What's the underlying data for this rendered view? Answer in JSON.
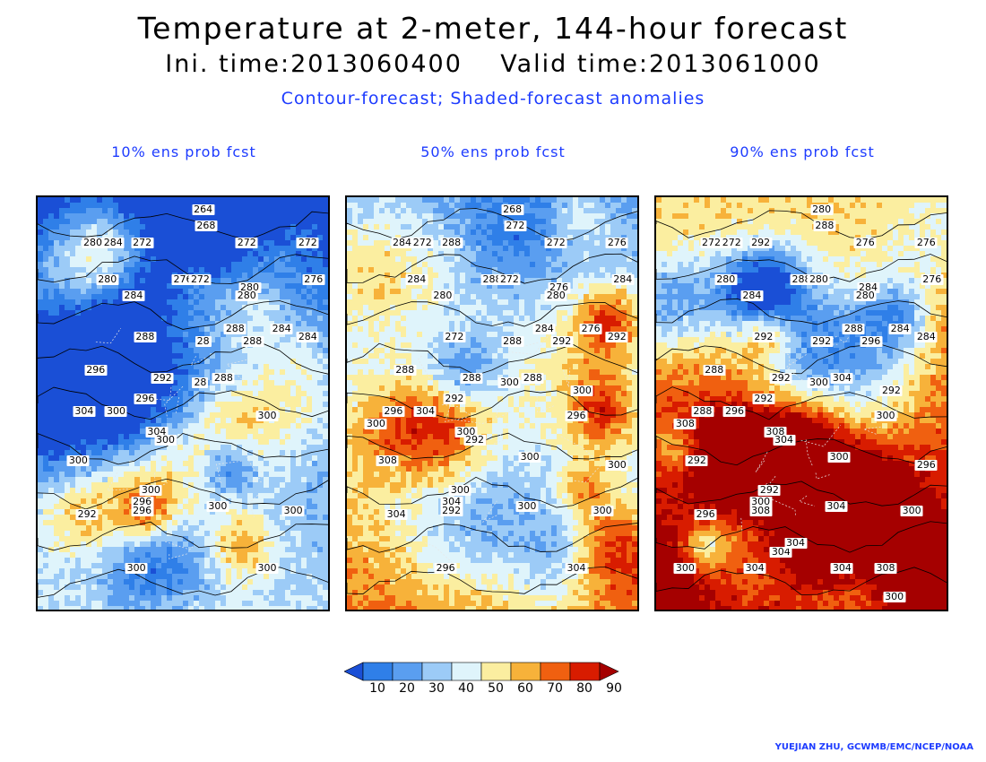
{
  "header": {
    "title": "Temperature at 2-meter, 144-hour forecast",
    "time_line": "Ini. time:2013060400    Valid time:2013061000",
    "subtitle": "Contour-forecast; Shaded-forecast anomalies"
  },
  "panels": [
    {
      "title": "10% ens prob fcst",
      "warmth": 0.18,
      "contour_labels": [
        "264",
        "268",
        "272",
        "272",
        "280",
        "284",
        "272",
        "272",
        "280",
        "276",
        "280",
        "284",
        "272",
        "276",
        "280",
        "288",
        "288",
        "284",
        "28",
        "288",
        "296",
        "292",
        "284",
        "28",
        "288",
        "296",
        "304",
        "300",
        "304",
        "300",
        "300",
        "300",
        "292",
        "296",
        "300",
        "296",
        "300",
        "300",
        "300",
        "300"
      ]
    },
    {
      "title": "50% ens prob fcst",
      "warmth": 0.5,
      "contour_labels": [
        "268",
        "272",
        "284",
        "288",
        "284",
        "272",
        "272",
        "276",
        "284",
        "288",
        "276",
        "280",
        "272",
        "284",
        "280",
        "284",
        "272",
        "276",
        "288",
        "292",
        "288",
        "288",
        "292",
        "300",
        "288",
        "292",
        "296",
        "304",
        "300",
        "292",
        "296",
        "308",
        "304",
        "304",
        "300",
        "292",
        "300",
        "300",
        "296",
        "304",
        "300",
        "300",
        "300",
        "300"
      ]
    },
    {
      "title": "90% ens prob fcst",
      "warmth": 0.8,
      "contour_labels": [
        "280",
        "288",
        "284",
        "292",
        "272",
        "272",
        "276",
        "276",
        "280",
        "288",
        "284",
        "284",
        "280",
        "276",
        "280",
        "288",
        "292",
        "284",
        "292",
        "296",
        "288",
        "292",
        "284",
        "300",
        "304",
        "292",
        "288",
        "296",
        "308",
        "304",
        "300",
        "292",
        "296",
        "300",
        "292",
        "308",
        "304",
        "300",
        "304",
        "308",
        "308",
        "292",
        "300",
        "296",
        "304",
        "304",
        "304",
        "300",
        "300"
      ]
    }
  ],
  "colorbar": {
    "labels": [
      "10",
      "20",
      "30",
      "40",
      "50",
      "60",
      "70",
      "80",
      "90"
    ],
    "colors": [
      "#1a4fd6",
      "#2f7fe8",
      "#5a9ef0",
      "#9ccbf7",
      "#dff4fb",
      "#fbeea0",
      "#f7b23a",
      "#f06010",
      "#d81c00",
      "#a50000"
    ]
  },
  "credit": "YUEJIAN ZHU, GCWMB/EMC/NCEP/NOAA"
}
